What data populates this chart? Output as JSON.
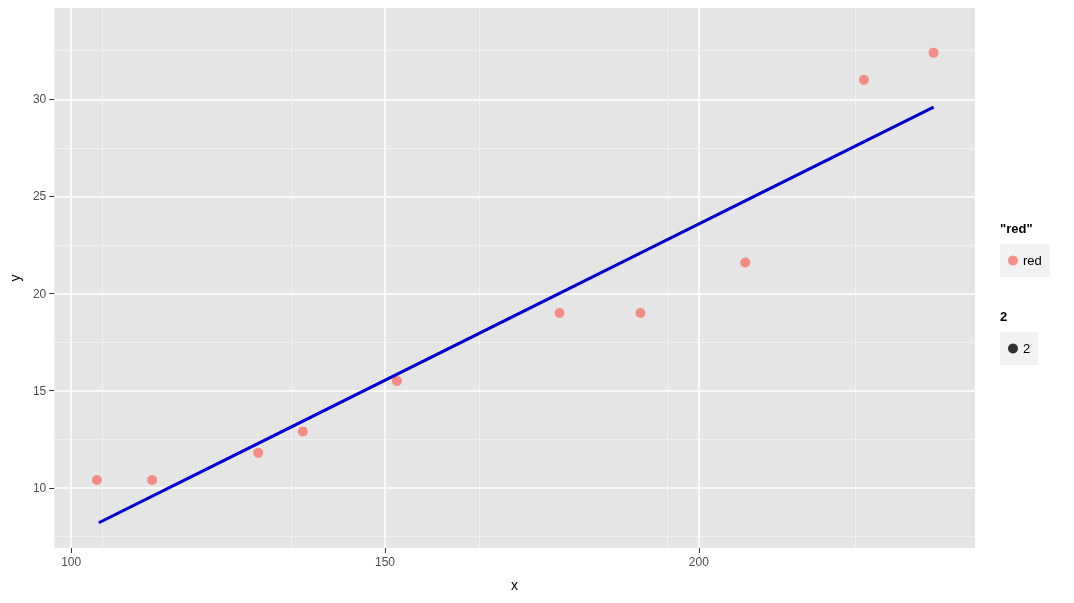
{
  "chart_data": {
    "type": "scatter",
    "xlabel": "x",
    "ylabel": "y",
    "legend_title": "\"red\"",
    "annotations": [
      "2"
    ],
    "xlim": [
      97.3,
      244
    ],
    "ylim": [
      6.9,
      34.7
    ],
    "xticks": [
      100,
      150,
      200
    ],
    "yticks": [
      10,
      15,
      20,
      25,
      30
    ],
    "grid": true,
    "legend": "right",
    "marker": "circle",
    "series": [
      {
        "name": "red",
        "color": "#f8766d",
        "x": [
          104.1,
          112.9,
          129.8,
          136.9,
          151.9,
          177.8,
          190.7,
          207.4,
          226.3,
          237.4
        ],
        "values": [
          10.4,
          10.4,
          11.8,
          12.9,
          15.5,
          19.0,
          19.0,
          21.6,
          31.0,
          32.4
        ]
      },
      {
        "name": "2",
        "color": "#000000"
      },
      {
        "type": "line",
        "marker": "none",
        "color": "#0000cc",
        "x": [
          104.4,
          237.4
        ],
        "values": [
          8.2,
          29.6
        ]
      }
    ]
  }
}
